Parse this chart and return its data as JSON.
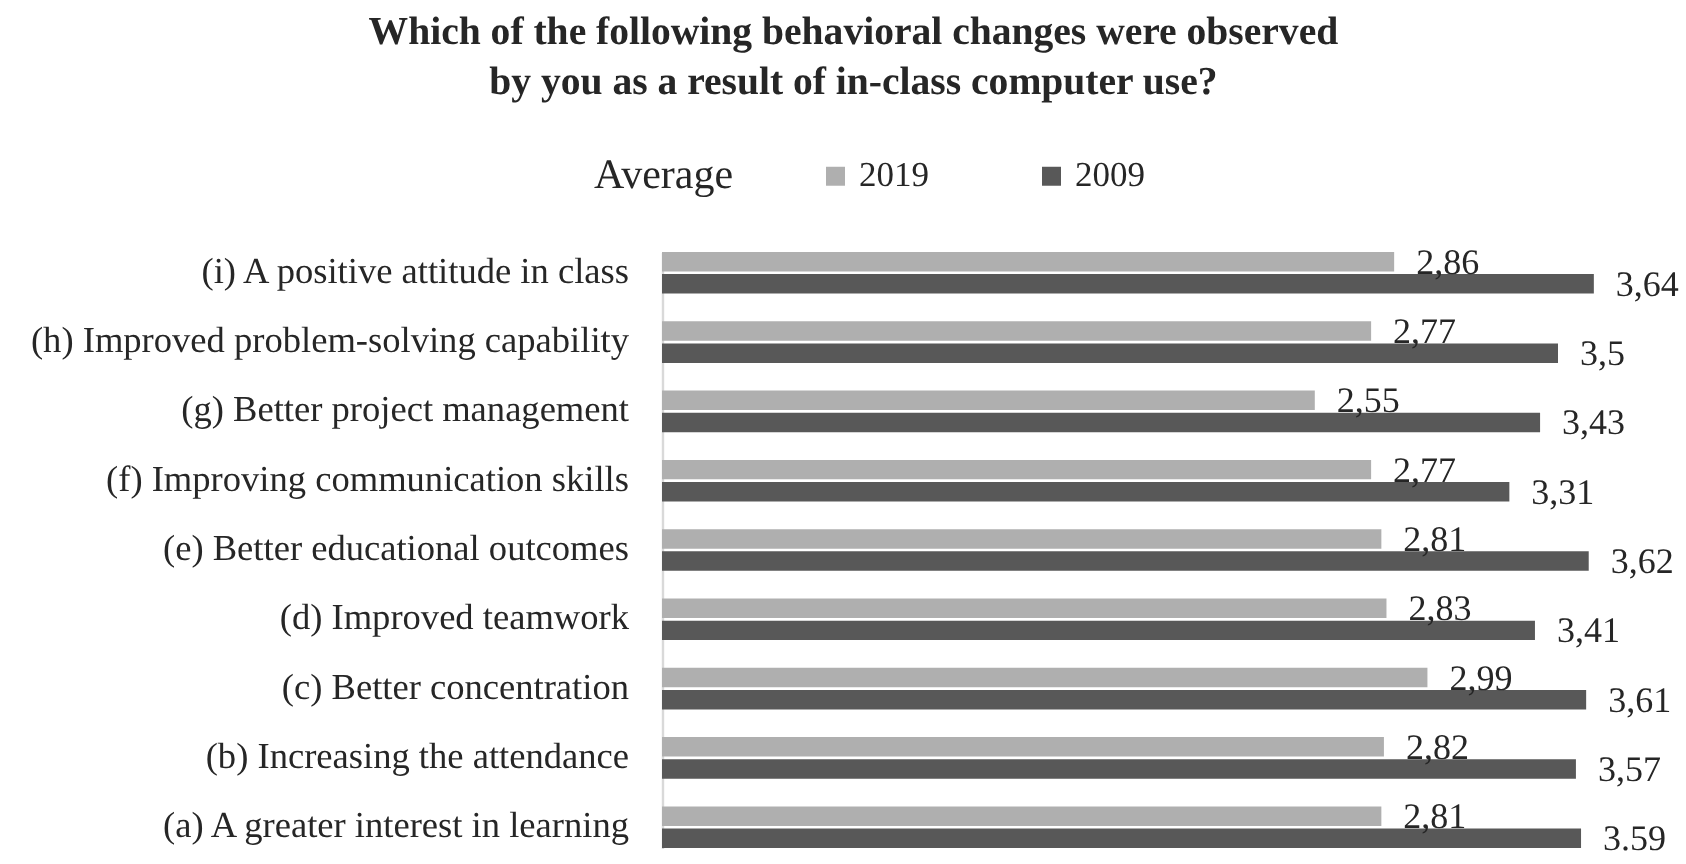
{
  "chart_data": {
    "type": "bar",
    "orientation": "horizontal",
    "title": "Which of the following behavioral changes were observed\nby you as a result of in-class computer use?",
    "legend_title": "Average",
    "legend": "top",
    "tick_labels": "y",
    "xlim": [
      0,
      4
    ],
    "categories": [
      "(i) A positive attitude in class",
      "(h)  Improved problem-solving capability",
      "(g) Better project management",
      "(f) Improving communication skills",
      "(e) Better educational outcomes",
      "(d) Improved teamwork",
      "(c) Better concentration",
      "(b) Increasing the attendance",
      "(a) A greater interest in learning"
    ],
    "series": [
      {
        "name": "2019",
        "color": "#afafaf",
        "values": [
          2.86,
          2.77,
          2.55,
          2.77,
          2.81,
          2.83,
          2.99,
          2.82,
          2.81
        ],
        "value_labels": [
          "2,86",
          "2,77",
          "2,55",
          "2,77",
          "2,81",
          "2,83",
          "2,99",
          "2,82",
          "2,81"
        ]
      },
      {
        "name": "2009",
        "color": "#585858",
        "values": [
          3.64,
          3.5,
          3.43,
          3.31,
          3.62,
          3.41,
          3.61,
          3.57,
          3.59
        ],
        "value_labels": [
          "3,64",
          "3,5",
          "3,43",
          "3,31",
          "3,62",
          "3,41",
          "3,61",
          "3,57",
          "3.59"
        ]
      }
    ]
  }
}
